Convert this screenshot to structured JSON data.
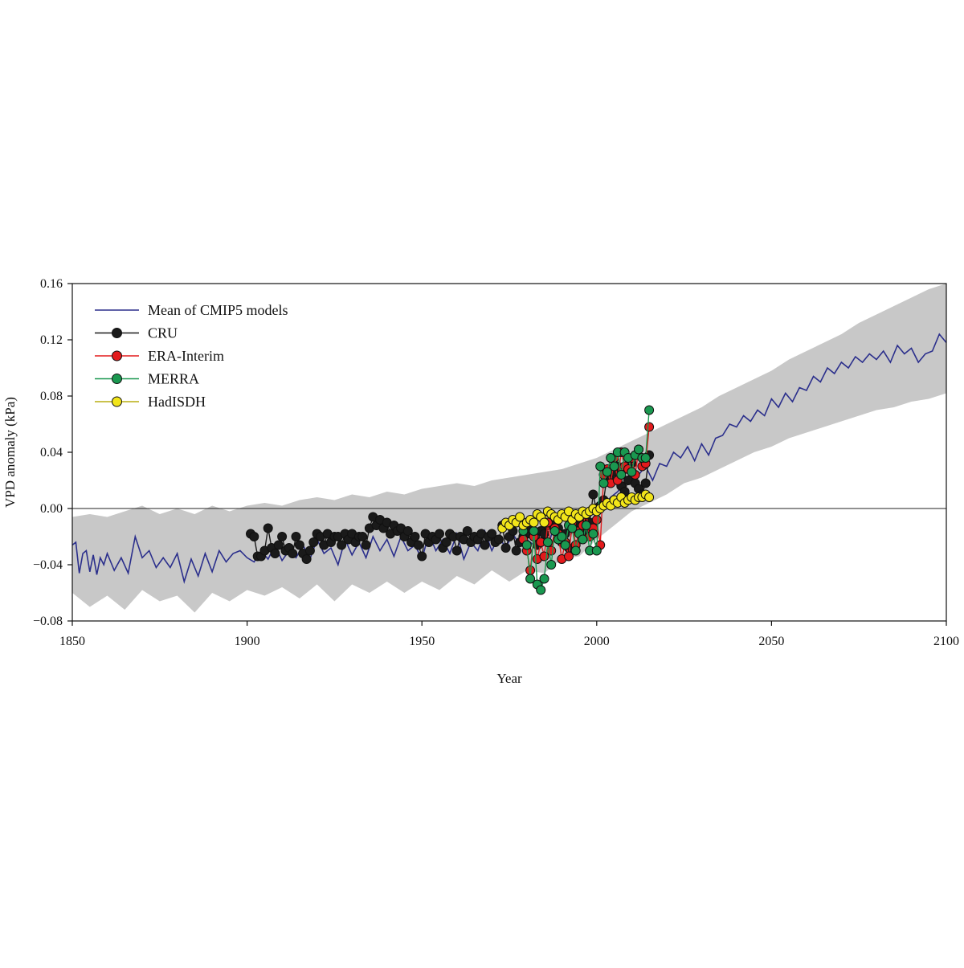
{
  "chart_data": {
    "type": "line",
    "xlabel": "Year",
    "ylabel": "VPD anomaly (kPa)",
    "xlim": [
      1850,
      2100
    ],
    "ylim": [
      -0.08,
      0.16
    ],
    "x_ticks": [
      1850,
      1900,
      1950,
      2000,
      2050,
      2100
    ],
    "x_tick_labels": [
      "1850",
      "1900",
      "1950",
      "2000",
      "2050",
      "2100"
    ],
    "y_ticks": [
      -0.08,
      -0.04,
      0.0,
      0.04,
      0.08,
      0.12,
      0.16
    ],
    "y_tick_labels": [
      "−0.08",
      "−0.04",
      "0.00",
      "0.04",
      "0.08",
      "0.12",
      "0.16"
    ],
    "grid": false,
    "zero_line": true,
    "legend": {
      "position": "top-left",
      "entries": [
        "Mean of CMIP5 models",
        "CRU",
        "ERA-Interim",
        "MERRA",
        "HadISDH"
      ]
    },
    "colors": {
      "cmip5_mean": "#2b2f8c",
      "cmip5_range": "#c8c8c8",
      "cru": "#1a1a1a",
      "era_interim": "#e31a1c",
      "merra": "#1a9850",
      "hadisdh": "#f2e51a"
    },
    "cmip5_mean": {
      "name": "Mean of CMIP5 models",
      "x": [
        1850,
        1851,
        1852,
        1853,
        1854,
        1855,
        1856,
        1857,
        1858,
        1859,
        1860,
        1862,
        1864,
        1866,
        1868,
        1870,
        1872,
        1874,
        1876,
        1878,
        1880,
        1882,
        1884,
        1886,
        1888,
        1890,
        1892,
        1894,
        1896,
        1898,
        1900,
        1902,
        1904,
        1906,
        1908,
        1910,
        1912,
        1914,
        1916,
        1918,
        1920,
        1922,
        1924,
        1926,
        1928,
        1930,
        1932,
        1934,
        1936,
        1938,
        1940,
        1942,
        1944,
        1946,
        1948,
        1950,
        1952,
        1954,
        1956,
        1958,
        1960,
        1962,
        1964,
        1966,
        1968,
        1970,
        1972,
        1974,
        1976,
        1978,
        1980,
        1982,
        1984,
        1986,
        1988,
        1990,
        1992,
        1994,
        1996,
        1998,
        2000,
        2002,
        2004,
        2006,
        2008,
        2010,
        2012,
        2014,
        2016,
        2018,
        2020,
        2022,
        2024,
        2026,
        2028,
        2030,
        2032,
        2034,
        2036,
        2038,
        2040,
        2042,
        2044,
        2046,
        2048,
        2050,
        2052,
        2054,
        2056,
        2058,
        2060,
        2062,
        2064,
        2066,
        2068,
        2070,
        2072,
        2074,
        2076,
        2078,
        2080,
        2082,
        2084,
        2086,
        2088,
        2090,
        2092,
        2094,
        2096,
        2098,
        2100
      ],
      "values": [
        -0.026,
        -0.024,
        -0.046,
        -0.032,
        -0.03,
        -0.045,
        -0.033,
        -0.047,
        -0.035,
        -0.04,
        -0.032,
        -0.044,
        -0.035,
        -0.046,
        -0.02,
        -0.035,
        -0.03,
        -0.042,
        -0.035,
        -0.042,
        -0.032,
        -0.052,
        -0.036,
        -0.048,
        -0.032,
        -0.045,
        -0.03,
        -0.038,
        -0.032,
        -0.03,
        -0.035,
        -0.038,
        -0.03,
        -0.036,
        -0.026,
        -0.037,
        -0.03,
        -0.035,
        -0.026,
        -0.036,
        -0.022,
        -0.032,
        -0.028,
        -0.04,
        -0.022,
        -0.033,
        -0.024,
        -0.035,
        -0.02,
        -0.03,
        -0.022,
        -0.034,
        -0.02,
        -0.03,
        -0.026,
        -0.036,
        -0.018,
        -0.03,
        -0.022,
        -0.032,
        -0.018,
        -0.036,
        -0.024,
        -0.03,
        -0.016,
        -0.03,
        -0.02,
        -0.028,
        -0.018,
        -0.026,
        -0.022,
        -0.026,
        -0.016,
        -0.028,
        -0.01,
        -0.022,
        -0.012,
        -0.018,
        -0.005,
        -0.012,
        -0.004,
        0.002,
        0.008,
        0.012,
        0.018,
        0.022,
        0.024,
        0.03,
        0.02,
        0.032,
        0.03,
        0.04,
        0.036,
        0.044,
        0.034,
        0.046,
        0.038,
        0.05,
        0.052,
        0.06,
        0.058,
        0.066,
        0.062,
        0.07,
        0.066,
        0.078,
        0.072,
        0.082,
        0.076,
        0.086,
        0.084,
        0.094,
        0.09,
        0.1,
        0.096,
        0.104,
        0.1,
        0.108,
        0.104,
        0.11,
        0.106,
        0.112,
        0.104,
        0.116,
        0.11,
        0.114,
        0.104,
        0.11,
        0.112,
        0.124,
        0.118
      ]
    },
    "cmip5_range": {
      "x": [
        1850,
        1855,
        1860,
        1865,
        1870,
        1875,
        1880,
        1885,
        1890,
        1895,
        1900,
        1905,
        1910,
        1915,
        1920,
        1925,
        1930,
        1935,
        1940,
        1945,
        1950,
        1955,
        1960,
        1965,
        1970,
        1975,
        1980,
        1985,
        1990,
        1995,
        2000,
        2005,
        2010,
        2015,
        2020,
        2025,
        2030,
        2035,
        2040,
        2045,
        2050,
        2055,
        2060,
        2065,
        2070,
        2075,
        2080,
        2085,
        2090,
        2095,
        2100
      ],
      "lower": [
        -0.06,
        -0.07,
        -0.062,
        -0.072,
        -0.058,
        -0.066,
        -0.062,
        -0.074,
        -0.06,
        -0.066,
        -0.058,
        -0.062,
        -0.056,
        -0.064,
        -0.054,
        -0.066,
        -0.054,
        -0.06,
        -0.052,
        -0.06,
        -0.052,
        -0.058,
        -0.048,
        -0.054,
        -0.044,
        -0.052,
        -0.044,
        -0.046,
        -0.036,
        -0.034,
        -0.022,
        -0.012,
        -0.002,
        0.004,
        0.01,
        0.018,
        0.022,
        0.028,
        0.034,
        0.04,
        0.044,
        0.05,
        0.054,
        0.058,
        0.062,
        0.066,
        0.07,
        0.072,
        0.076,
        0.078,
        0.082
      ],
      "upper": [
        -0.006,
        -0.004,
        -0.006,
        -0.002,
        0.002,
        -0.004,
        0.0,
        -0.004,
        0.002,
        -0.002,
        0.002,
        0.004,
        0.002,
        0.006,
        0.008,
        0.006,
        0.01,
        0.008,
        0.012,
        0.01,
        0.014,
        0.016,
        0.018,
        0.016,
        0.02,
        0.022,
        0.024,
        0.026,
        0.028,
        0.032,
        0.036,
        0.042,
        0.048,
        0.054,
        0.06,
        0.066,
        0.072,
        0.08,
        0.086,
        0.092,
        0.098,
        0.106,
        0.112,
        0.118,
        0.124,
        0.132,
        0.138,
        0.144,
        0.15,
        0.156,
        0.16
      ]
    },
    "series": [
      {
        "name": "CRU",
        "x": [
          1901,
          1902,
          1903,
          1904,
          1905,
          1906,
          1907,
          1908,
          1909,
          1910,
          1911,
          1912,
          1913,
          1914,
          1915,
          1916,
          1917,
          1918,
          1919,
          1920,
          1921,
          1922,
          1923,
          1924,
          1925,
          1926,
          1927,
          1928,
          1929,
          1930,
          1931,
          1932,
          1933,
          1934,
          1935,
          1936,
          1937,
          1938,
          1939,
          1940,
          1941,
          1942,
          1943,
          1944,
          1945,
          1946,
          1947,
          1948,
          1949,
          1950,
          1951,
          1952,
          1953,
          1954,
          1955,
          1956,
          1957,
          1958,
          1959,
          1960,
          1961,
          1962,
          1963,
          1964,
          1965,
          1966,
          1967,
          1968,
          1969,
          1970,
          1971,
          1972,
          1973,
          1974,
          1975,
          1976,
          1977,
          1978,
          1979,
          1980,
          1981,
          1982,
          1983,
          1984,
          1985,
          1986,
          1987,
          1988,
          1989,
          1990,
          1991,
          1992,
          1993,
          1994,
          1995,
          1996,
          1997,
          1998,
          1999,
          2000,
          2001,
          2002,
          2003,
          2004,
          2005,
          2006,
          2007,
          2008,
          2009,
          2010,
          2011,
          2012,
          2013,
          2014,
          2015
        ],
        "values": [
          -0.018,
          -0.02,
          -0.034,
          -0.034,
          -0.03,
          -0.014,
          -0.028,
          -0.032,
          -0.026,
          -0.02,
          -0.03,
          -0.028,
          -0.032,
          -0.02,
          -0.026,
          -0.032,
          -0.036,
          -0.03,
          -0.024,
          -0.018,
          -0.02,
          -0.026,
          -0.018,
          -0.024,
          -0.02,
          -0.02,
          -0.026,
          -0.018,
          -0.022,
          -0.018,
          -0.024,
          -0.02,
          -0.02,
          -0.026,
          -0.014,
          -0.006,
          -0.012,
          -0.008,
          -0.014,
          -0.01,
          -0.018,
          -0.012,
          -0.016,
          -0.014,
          -0.02,
          -0.016,
          -0.024,
          -0.02,
          -0.026,
          -0.034,
          -0.018,
          -0.024,
          -0.02,
          -0.022,
          -0.018,
          -0.028,
          -0.024,
          -0.018,
          -0.02,
          -0.03,
          -0.02,
          -0.022,
          -0.016,
          -0.024,
          -0.02,
          -0.022,
          -0.018,
          -0.026,
          -0.02,
          -0.018,
          -0.024,
          -0.022,
          -0.012,
          -0.028,
          -0.02,
          -0.016,
          -0.03,
          -0.024,
          -0.02,
          -0.018,
          -0.014,
          -0.02,
          -0.026,
          -0.016,
          -0.018,
          -0.012,
          -0.01,
          -0.016,
          -0.014,
          -0.024,
          -0.018,
          -0.028,
          -0.014,
          -0.01,
          -0.012,
          -0.006,
          -0.016,
          -0.01,
          0.01,
          -0.002,
          0.002,
          0.006,
          0.024,
          0.02,
          0.026,
          0.03,
          0.016,
          0.012,
          0.02,
          0.032,
          0.018,
          0.014,
          0.01,
          0.018,
          0.038
        ]
      },
      {
        "name": "ERA-Interim",
        "x": [
          1979,
          1980,
          1981,
          1982,
          1983,
          1984,
          1985,
          1986,
          1987,
          1988,
          1989,
          1990,
          1991,
          1992,
          1993,
          1994,
          1995,
          1996,
          1997,
          1998,
          1999,
          2000,
          2001,
          2002,
          2003,
          2004,
          2005,
          2006,
          2007,
          2008,
          2009,
          2010,
          2011,
          2012,
          2013,
          2014,
          2015
        ],
        "values": [
          -0.022,
          -0.03,
          -0.044,
          -0.02,
          -0.036,
          -0.024,
          -0.034,
          -0.01,
          -0.03,
          -0.014,
          -0.018,
          -0.036,
          -0.024,
          -0.034,
          -0.01,
          -0.026,
          -0.016,
          -0.012,
          -0.004,
          -0.02,
          -0.014,
          -0.008,
          -0.026,
          0.024,
          0.028,
          0.018,
          0.036,
          0.02,
          0.04,
          0.03,
          0.028,
          0.036,
          0.024,
          0.042,
          0.03,
          0.032,
          0.058
        ]
      },
      {
        "name": "MERRA",
        "x": [
          1979,
          1980,
          1981,
          1982,
          1983,
          1984,
          1985,
          1986,
          1987,
          1988,
          1989,
          1990,
          1991,
          1992,
          1993,
          1994,
          1995,
          1996,
          1997,
          1998,
          1999,
          2000,
          2001,
          2002,
          2003,
          2004,
          2005,
          2006,
          2007,
          2008,
          2009,
          2010,
          2011,
          2012,
          2013,
          2014,
          2015
        ],
        "values": [
          -0.016,
          -0.026,
          -0.05,
          -0.016,
          -0.054,
          -0.058,
          -0.05,
          -0.024,
          -0.04,
          -0.016,
          -0.022,
          -0.02,
          -0.026,
          -0.012,
          -0.014,
          -0.03,
          -0.018,
          -0.022,
          -0.012,
          -0.03,
          -0.018,
          -0.03,
          0.03,
          0.018,
          0.026,
          0.036,
          0.03,
          0.04,
          0.024,
          0.04,
          0.036,
          0.026,
          0.038,
          0.042,
          0.036,
          0.036,
          0.07
        ]
      },
      {
        "name": "HadISDH",
        "x": [
          1973,
          1974,
          1975,
          1976,
          1977,
          1978,
          1979,
          1980,
          1981,
          1982,
          1983,
          1984,
          1985,
          1986,
          1987,
          1988,
          1989,
          1990,
          1991,
          1992,
          1993,
          1994,
          1995,
          1996,
          1997,
          1998,
          1999,
          2000,
          2001,
          2002,
          2003,
          2004,
          2005,
          2006,
          2007,
          2008,
          2009,
          2010,
          2011,
          2012,
          2013,
          2014,
          2015
        ],
        "values": [
          -0.014,
          -0.01,
          -0.012,
          -0.008,
          -0.01,
          -0.006,
          -0.012,
          -0.01,
          -0.008,
          -0.01,
          -0.004,
          -0.006,
          -0.01,
          -0.002,
          -0.004,
          -0.006,
          -0.008,
          -0.004,
          -0.006,
          -0.002,
          -0.008,
          -0.004,
          -0.006,
          -0.002,
          -0.004,
          -0.002,
          0.0,
          -0.002,
          0.0,
          0.002,
          0.004,
          0.002,
          0.006,
          0.004,
          0.008,
          0.004,
          0.006,
          0.008,
          0.006,
          0.008,
          0.008,
          0.01,
          0.008
        ]
      }
    ]
  }
}
